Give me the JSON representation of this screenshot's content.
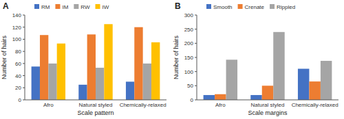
{
  "chart_data": [
    {
      "type": "bar",
      "title": "A",
      "xlabel": "Scale pattern",
      "ylabel": "Number of hairs",
      "categories": [
        "Afro",
        "Natural styled",
        "Chemically-relaxed"
      ],
      "series": [
        {
          "name": "RM",
          "color": "#4472C4",
          "values": [
            55,
            25,
            30
          ]
        },
        {
          "name": "IM",
          "color": "#ED7D31",
          "values": [
            107,
            108,
            120
          ]
        },
        {
          "name": "RW",
          "color": "#A5A5A5",
          "values": [
            60,
            53,
            60
          ]
        },
        {
          "name": "IW",
          "color": "#FFC000",
          "values": [
            93,
            125,
            95
          ]
        }
      ],
      "ylim": [
        0,
        140
      ],
      "yticks": [
        0,
        20,
        40,
        60,
        80,
        100,
        120,
        140
      ],
      "grid": false,
      "legend": "top"
    },
    {
      "type": "bar",
      "title": "B",
      "xlabel": "Scale margins",
      "ylabel": "Number of hairs",
      "categories": [
        "Afro",
        "Natural styled",
        "Chemically-relaxed"
      ],
      "series": [
        {
          "name": "Smooth",
          "color": "#4472C4",
          "values": [
            17,
            17,
            110
          ]
        },
        {
          "name": "Crenate",
          "color": "#ED7D31",
          "values": [
            20,
            50,
            65
          ]
        },
        {
          "name": "Rippled",
          "color": "#A5A5A5",
          "values": [
            142,
            240,
            138
          ]
        }
      ],
      "ylim": [
        0,
        300
      ],
      "yticks": [
        0,
        50,
        100,
        150,
        200,
        250,
        300
      ],
      "grid": false,
      "legend": "top"
    }
  ]
}
